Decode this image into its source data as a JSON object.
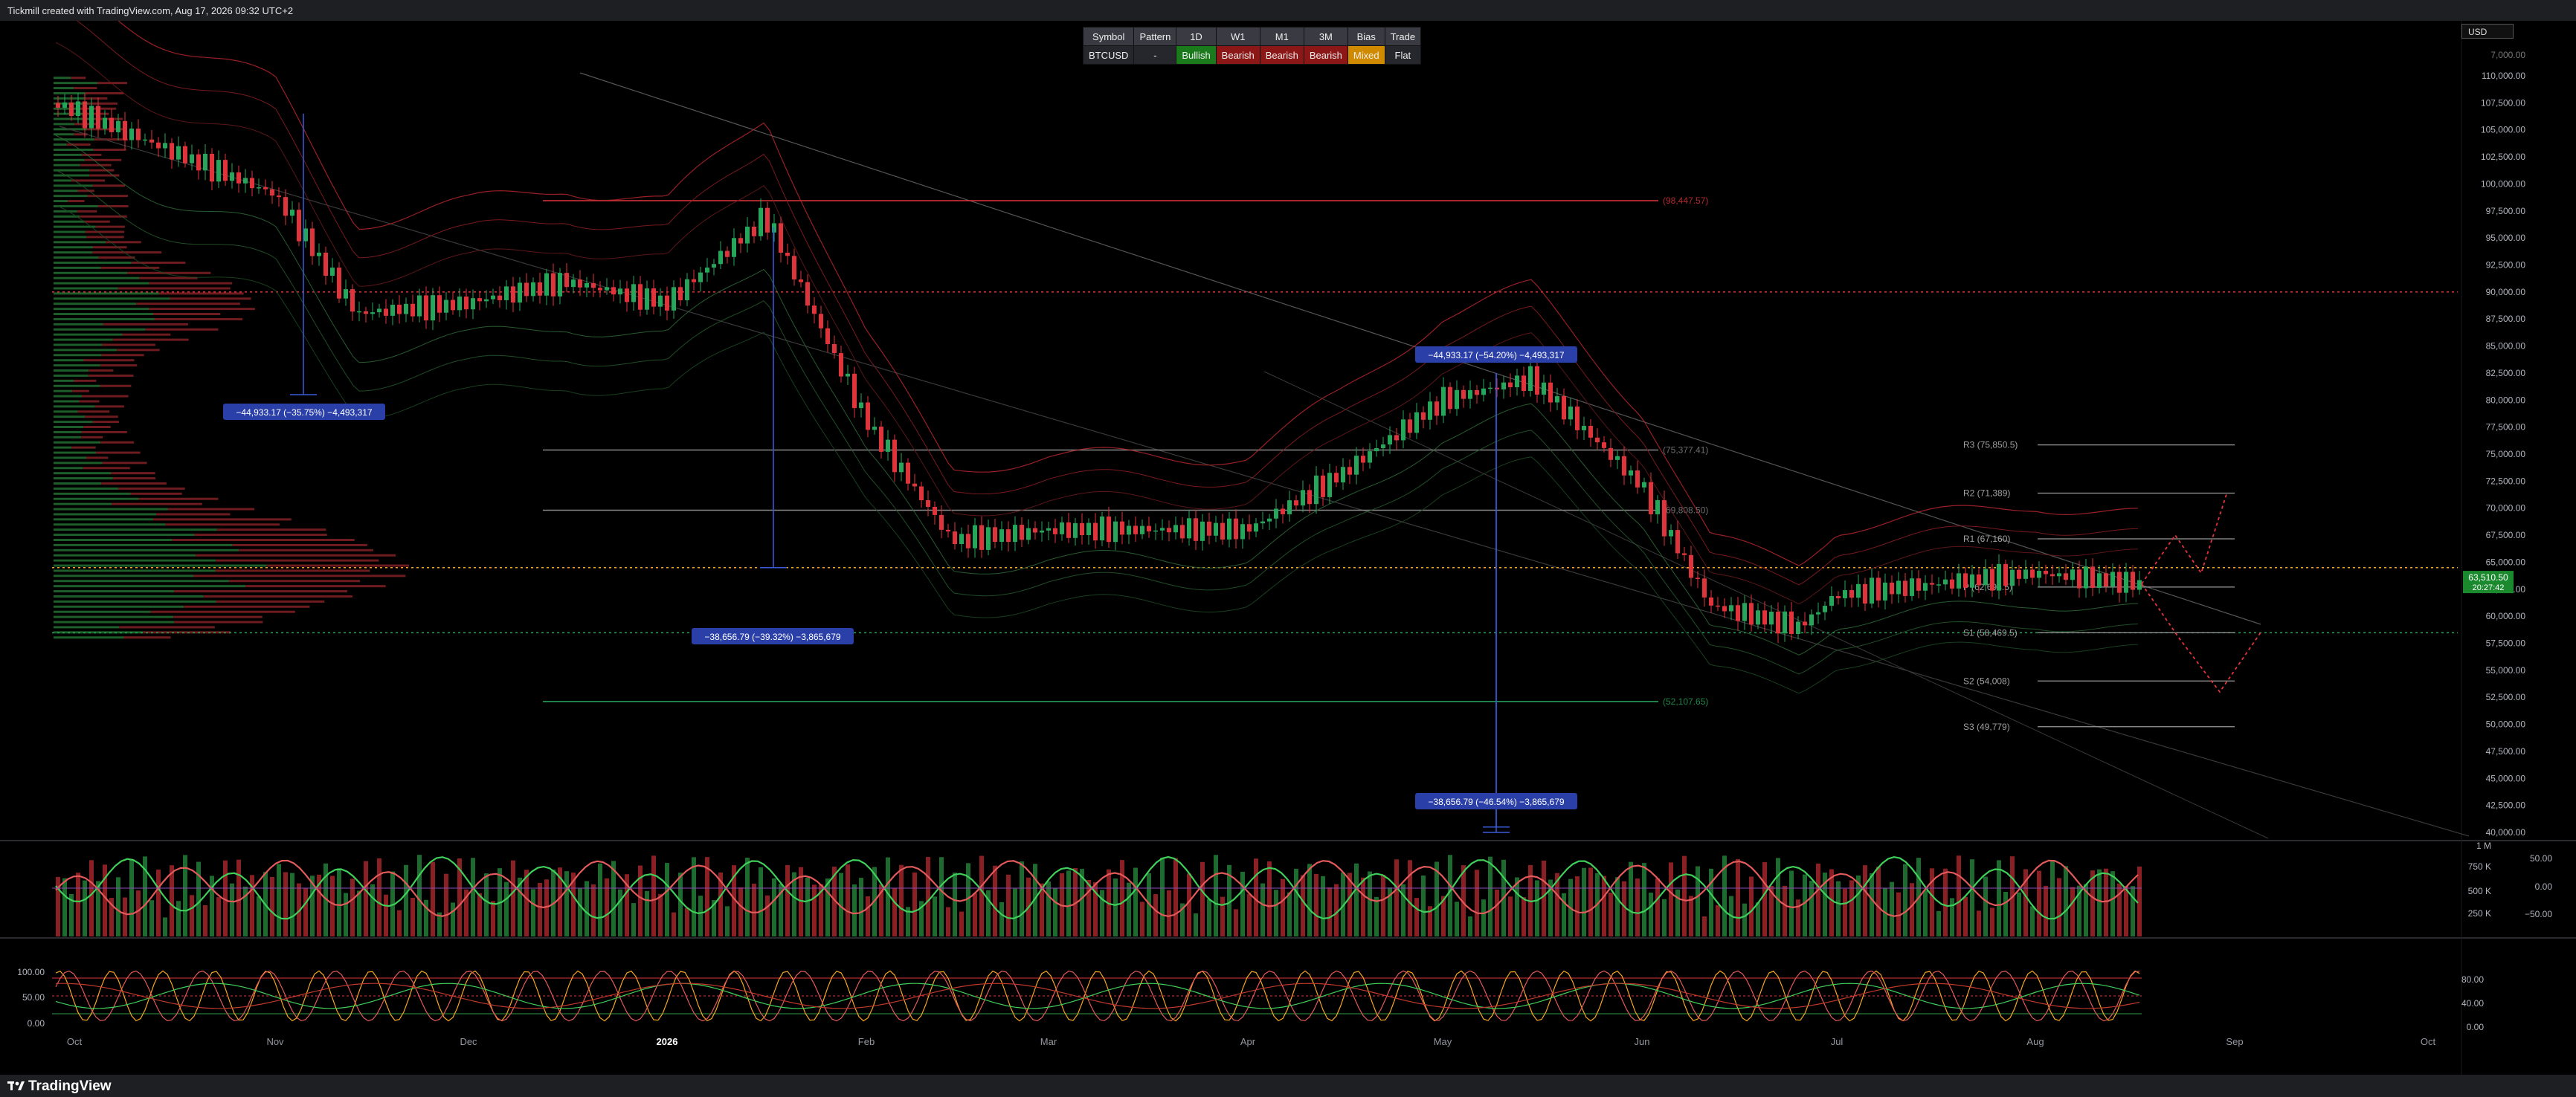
{
  "header": {
    "credit": "Tickmill created with TradingView.com, Aug 17, 2026 09:32 UTC+2"
  },
  "currency": "USD",
  "footer": {
    "brand": "TradingView"
  },
  "signal_table": {
    "headers": [
      "Symbol",
      "Pattern",
      "1D",
      "W1",
      "M1",
      "3M",
      "Bias",
      "Trade"
    ],
    "values": [
      "BTCUSD",
      "-",
      "Bullish",
      "Bearish",
      "Bearish",
      "Bearish",
      "Mixed",
      "Flat"
    ]
  },
  "colors": {
    "bull": "#26a65b",
    "bear": "#e0343c",
    "blue": "#2a3fa8",
    "orange": "#f5a623",
    "bg": "#000000"
  },
  "chart_data": {
    "type": "candlestick",
    "symbol": "BTCUSD",
    "y_axis": {
      "range": [
        40000,
        110500
      ],
      "ticks": [
        "110,000.00",
        "107,500.00",
        "105,000.00",
        "102,500.00",
        "100,000.00",
        "97,500.00",
        "95,000.00",
        "92,500.00",
        "90,000.00",
        "87,500.00",
        "85,000.00",
        "82,500.00",
        "80,000.00",
        "77,500.00",
        "75,000.00",
        "72,500.00",
        "70,000.00",
        "67,500.00",
        "65,000.00",
        "62,500.00",
        "60,000.00",
        "57,500.00",
        "55,000.00",
        "52,500.00",
        "50,000.00",
        "47,500.00",
        "45,000.00",
        "42,500.00",
        "40,000.00"
      ],
      "top_label": "7,000.00"
    },
    "x_axis": {
      "labels": [
        "Oct",
        "Nov",
        "Dec",
        "2026",
        "Feb",
        "Mar",
        "Apr",
        "May",
        "Jun",
        "Jul",
        "Aug",
        "Sep",
        "Oct"
      ]
    },
    "price_path": [
      [
        "Oct",
        107500
      ],
      [
        "Nov",
        99000
      ],
      [
        "Nov-mid",
        88000
      ],
      [
        "Dec",
        89000
      ],
      [
        "Dec-mid",
        91000
      ],
      [
        "2026",
        89000
      ],
      [
        "Jan-mid",
        97000
      ],
      [
        "Feb",
        78000
      ],
      [
        "Feb-mid",
        67000
      ],
      [
        "Mar",
        68000
      ],
      [
        "Apr",
        68000
      ],
      [
        "Apr-mid",
        73000
      ],
      [
        "May",
        80000
      ],
      [
        "May-mid",
        82000
      ],
      [
        "Jun",
        72000
      ],
      [
        "Jun-mid",
        61000
      ],
      [
        "Jul",
        62000
      ],
      [
        "Jul-early",
        59000
      ],
      [
        "Aug",
        64000
      ],
      [
        "Aug-mid",
        63000
      ]
    ],
    "current_price": {
      "price": "63,510.50",
      "sub": "20:27:42"
    },
    "horizontal_levels": [
      {
        "label": "(98,447.57)",
        "value": 98447.57,
        "color": "#e0343c"
      },
      {
        "label": "(75,377.41)",
        "value": 75377.41,
        "color": "#888888"
      },
      {
        "label": "(69,808.50)",
        "value": 69808.5,
        "color": "#888888"
      },
      {
        "label": "(52,107.65)",
        "value": 52107.65,
        "color": "#26a65b"
      }
    ],
    "pivots": [
      {
        "label": "R3 (75,850.5)",
        "value": 75850.5
      },
      {
        "label": "R2 (71,389)",
        "value": 71389
      },
      {
        "label": "R1 (67,160)",
        "value": 67160
      },
      {
        "label": "P (62,698.5)",
        "value": 62698.5
      },
      {
        "label": "S1 (58,469.5)",
        "value": 58469.5
      },
      {
        "label": "S2 (54,008)",
        "value": 54008
      },
      {
        "label": "S3 (49,779)",
        "value": 49779
      }
    ],
    "dotted_levels": [
      {
        "value": 90000,
        "color": "#e0343c"
      },
      {
        "value": 64500,
        "color": "#f5a623"
      },
      {
        "value": 58469.5,
        "color": "#26a65b"
      }
    ],
    "measure_labels": [
      "−44,933.17 (−35.75%) −4,493,317",
      "−38,656.79 (−39.32%) −3,865,679",
      "−44,933.17 (−54.20%) −4,493,317",
      "−38,656.79 (−46.54%) −3,865,679"
    ],
    "volume_pane": {
      "ticks": [
        "1 M",
        "750 K",
        "500 K",
        "250 K"
      ],
      "osc_ticks": [
        "50.00",
        "0.00",
        "−50.00"
      ]
    },
    "oscillator_pane": {
      "left_ticks": [
        "100.00",
        "50.00",
        "0.00"
      ],
      "right_ticks": [
        "80.00",
        "40.00",
        "0.00"
      ]
    }
  }
}
